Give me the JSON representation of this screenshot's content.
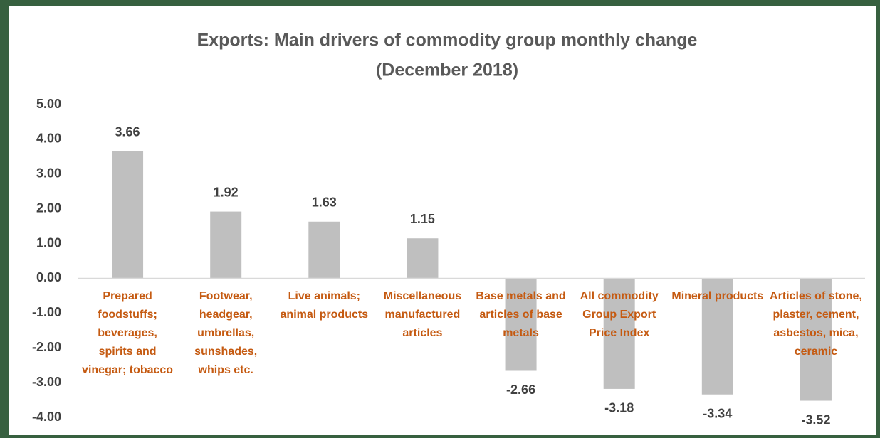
{
  "chart_data": {
    "type": "bar",
    "title": "Exports: Main drivers of commodity group monthly change",
    "subtitle": "(December 2018)",
    "categories": [
      "Prepared foodstuffs; beverages, spirits and vinegar; tobacco",
      "Footwear, headgear, umbrellas, sunshades, whips etc.",
      "Live animals; animal products",
      "Miscellaneous manufactured articles",
      "Base metals and articles of base metals",
      "All commodity Group  Export Price Index",
      "Mineral products",
      "Articles of stone, plaster, cement, asbestos, mica, ceramic"
    ],
    "values": [
      3.66,
      1.92,
      1.63,
      1.15,
      -2.66,
      -3.18,
      -3.34,
      -3.52
    ],
    "color": "#bfbfbf",
    "label_color": "#c55a11",
    "ylim": [
      -4,
      5
    ],
    "yticks": [
      {
        "value": 5,
        "label": "5.00"
      },
      {
        "value": 4,
        "label": "4.00"
      },
      {
        "value": 3,
        "label": "3.00"
      },
      {
        "value": 2,
        "label": "2.00"
      },
      {
        "value": 1,
        "label": "1.00"
      },
      {
        "value": 0,
        "label": "0.00"
      },
      {
        "value": -1,
        "label": "-1.00"
      },
      {
        "value": -2,
        "label": "-2.00"
      },
      {
        "value": -3,
        "label": "-3.00"
      },
      {
        "value": -4,
        "label": "-4.00"
      }
    ],
    "grid": false
  }
}
